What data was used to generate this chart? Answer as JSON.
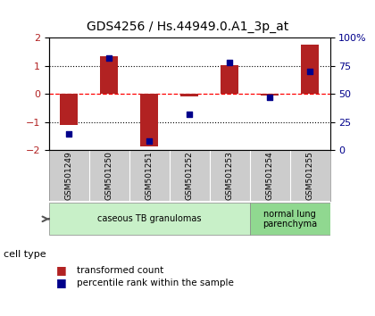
{
  "title": "GDS4256 / Hs.44949.0.A1_3p_at",
  "samples": [
    "GSM501249",
    "GSM501250",
    "GSM501251",
    "GSM501252",
    "GSM501253",
    "GSM501254",
    "GSM501255"
  ],
  "transformed_counts": [
    -1.1,
    1.35,
    -1.85,
    -0.07,
    1.02,
    -0.05,
    1.75
  ],
  "percentile_ranks": [
    15,
    82,
    8,
    32,
    78,
    47,
    70
  ],
  "ylim_left": [
    -2,
    2
  ],
  "ylim_right": [
    0,
    100
  ],
  "yticks_left": [
    -2,
    -1,
    0,
    1,
    2
  ],
  "yticks_right": [
    0,
    25,
    50,
    75,
    100
  ],
  "ytick_labels_right": [
    "0",
    "25",
    "50",
    "75",
    "100%"
  ],
  "hlines_dotted": [
    -1,
    1
  ],
  "bar_color": "#b22222",
  "scatter_color": "#00008b",
  "cell_type_groups": [
    {
      "label": "caseous TB granulomas",
      "samples": [
        0,
        1,
        2,
        3,
        4
      ],
      "color": "#c8f0c8"
    },
    {
      "label": "normal lung\nparenchyma",
      "samples": [
        5,
        6
      ],
      "color": "#90d890"
    }
  ],
  "cell_type_label": "cell type",
  "legend_entries": [
    {
      "color": "#b22222",
      "label": "transformed count"
    },
    {
      "color": "#00008b",
      "label": "percentile rank within the sample"
    }
  ],
  "background_color": "#ffffff",
  "plot_bg_color": "#ffffff",
  "tick_label_color_left": "#b22222",
  "tick_label_color_right": "#00008b",
  "label_bg_color": "#cccccc"
}
